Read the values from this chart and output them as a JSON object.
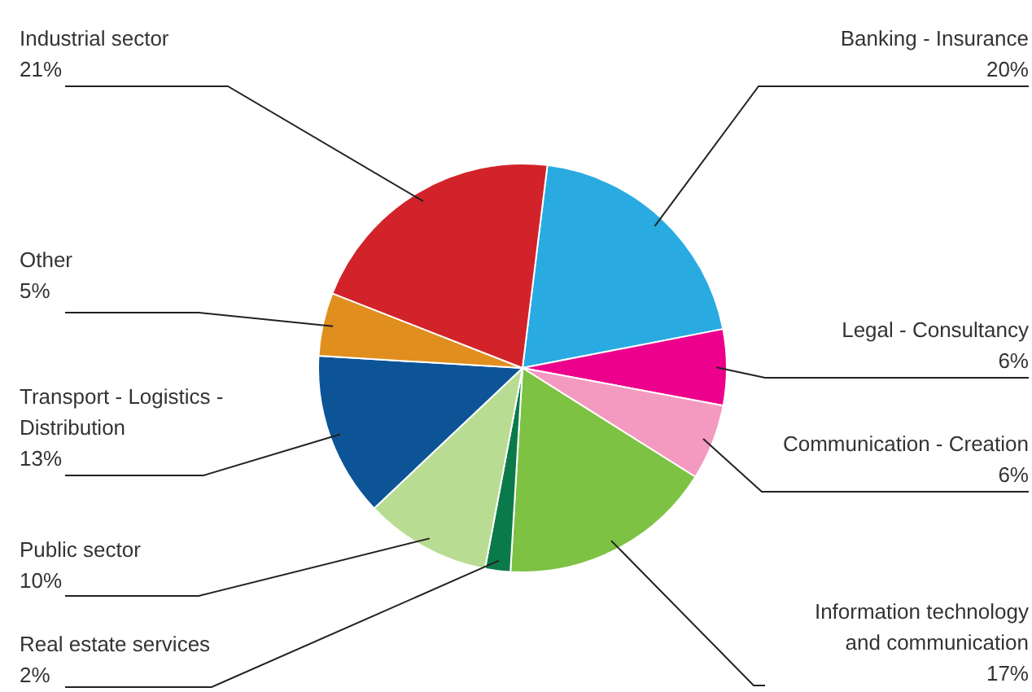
{
  "chart_data": {
    "type": "pie",
    "categories": [
      "Banking - Insurance",
      "Legal - Consultancy",
      "Communication - Creation",
      "Information technology and communication",
      "Real estate services",
      "Public sector",
      "Transport - Logistics - Distribution",
      "Other",
      "Industrial sector"
    ],
    "values": [
      20,
      6,
      6,
      17,
      2,
      10,
      13,
      5,
      21
    ],
    "value_labels": [
      "20%",
      "6%",
      "6%",
      "17%",
      "2%",
      "10%",
      "13%",
      "5%",
      "21%"
    ],
    "colors": [
      "#29abe2",
      "#ec008c",
      "#f49ac1",
      "#7dc242",
      "#0b7a4b",
      "#b9dc93",
      "#0d5497",
      "#e08e1e",
      "#d2232a"
    ],
    "legend": false
  }
}
